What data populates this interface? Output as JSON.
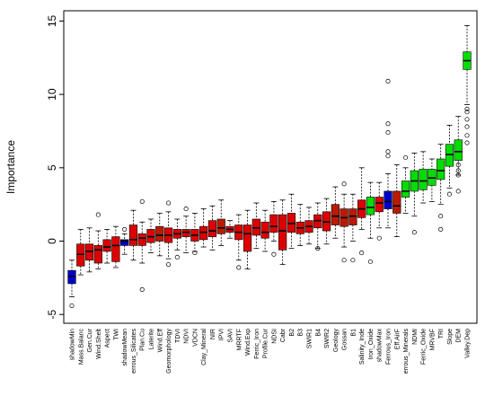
{
  "chart_data": {
    "type": "box",
    "ylabel": "Importance",
    "xlabel": "",
    "ylim": [
      -5.6,
      15.7
    ],
    "yticks": [
      -5,
      0,
      5,
      10,
      15
    ],
    "grid": false,
    "legend": "none",
    "colors": {
      "shadow": "#0000cc",
      "rejected": "#dd0000",
      "tentative": "#bb1a00",
      "confirmed": "#00dd00",
      "median": "#000000",
      "whisker": "#000000"
    },
    "categories": [
      "shadowMin",
      "Mass.Balanc",
      "Gen.Cur",
      "Wind.Shelt",
      "Aspect",
      "TWI",
      "shadowMean",
      "errous_Silicates",
      "Plan.Cu",
      "Laterite",
      "Wind.Eff",
      "Geomorphology",
      "TDVI",
      "NDVI",
      "VDCN",
      "Clay_Mineral",
      "NIR",
      "IPVI",
      "SAVI",
      "MRRTF",
      "Wind.Exp",
      "Ferric_Iron",
      "Profile.Cur",
      "NDSI",
      "Cabr",
      "B2",
      "B3",
      "SWIR1",
      "B4",
      "SWIR2",
      "Geology",
      "Gossan",
      "B1",
      "Salinity_Inde",
      "Iron_Oxide",
      "shadowMax",
      "Ferrous_Iron",
      "Eff.AirF",
      "errous_Minerals",
      "NDMI",
      "Ferric_Oxide",
      "MRVBF",
      "TRI",
      "Slope",
      "DEM",
      "Valley.Dep"
    ],
    "boxes": [
      {
        "status": "shadow",
        "min": -3.8,
        "q1": -2.9,
        "median": -2.4,
        "q3": -2.0,
        "max": -1.3,
        "outliers": [
          -4.4
        ]
      },
      {
        "status": "rejected",
        "min": -2.3,
        "q1": -1.7,
        "median": -0.9,
        "q3": -0.2,
        "max": 0.8,
        "outliers": []
      },
      {
        "status": "rejected",
        "min": -2.1,
        "q1": -1.3,
        "median": -0.7,
        "q3": -0.2,
        "max": 0.9,
        "outliers": []
      },
      {
        "status": "rejected",
        "min": -1.9,
        "q1": -1.5,
        "median": -0.6,
        "q3": -0.3,
        "max": 0.7,
        "outliers": [
          1.8
        ]
      },
      {
        "status": "rejected",
        "min": -1.5,
        "q1": -0.7,
        "median": -0.4,
        "q3": 0.1,
        "max": 0.8,
        "outliers": []
      },
      {
        "status": "rejected",
        "min": -1.8,
        "q1": -1.4,
        "median": -0.3,
        "q3": 0.3,
        "max": 1.0,
        "outliers": []
      },
      {
        "status": "shadow",
        "min": -0.9,
        "q1": -0.3,
        "median": 0.0,
        "q3": 0.1,
        "max": 0.5,
        "outliers": [
          0.8
        ]
      },
      {
        "status": "rejected",
        "min": -1.3,
        "q1": -0.3,
        "median": 0.1,
        "q3": 1.1,
        "max": 2.1,
        "outliers": []
      },
      {
        "status": "rejected",
        "min": -1.5,
        "q1": -0.3,
        "median": 0.2,
        "q3": 0.5,
        "max": 1.3,
        "outliers": [
          2.7,
          -3.3
        ]
      },
      {
        "status": "rejected",
        "min": -0.8,
        "q1": -0.1,
        "median": 0.3,
        "q3": 0.8,
        "max": 1.5,
        "outliers": []
      },
      {
        "status": "tentative",
        "min": -1.0,
        "q1": 0.0,
        "median": 0.4,
        "q3": 1.0,
        "max": 1.9,
        "outliers": []
      },
      {
        "status": "rejected",
        "min": -1.2,
        "q1": -0.1,
        "median": 0.4,
        "q3": 0.9,
        "max": 2.0,
        "outliers": [
          2.6,
          -1.6
        ]
      },
      {
        "status": "rejected",
        "min": -0.6,
        "q1": 0.2,
        "median": 0.5,
        "q3": 0.8,
        "max": 1.5,
        "outliers": [
          -1.1
        ]
      },
      {
        "status": "rejected",
        "min": -0.8,
        "q1": 0.3,
        "median": 0.6,
        "q3": 0.8,
        "max": 1.7,
        "outliers": [
          2.2
        ]
      },
      {
        "status": "rejected",
        "min": -0.7,
        "q1": 0.0,
        "median": 0.4,
        "q3": 0.8,
        "max": 1.9,
        "outliers": [
          -0.8
        ]
      },
      {
        "status": "rejected",
        "min": -0.4,
        "q1": 0.1,
        "median": 0.6,
        "q3": 1.0,
        "max": 2.2,
        "outliers": []
      },
      {
        "status": "rejected",
        "min": -0.6,
        "q1": 0.3,
        "median": 0.7,
        "q3": 1.4,
        "max": 2.4,
        "outliers": []
      },
      {
        "status": "tentative",
        "min": -0.3,
        "q1": 0.5,
        "median": 0.9,
        "q3": 1.5,
        "max": 2.8,
        "outliers": []
      },
      {
        "status": "rejected",
        "min": 0.2,
        "q1": 0.6,
        "median": 0.8,
        "q3": 1.0,
        "max": 1.4,
        "outliers": []
      },
      {
        "status": "rejected",
        "min": -1.3,
        "q1": 0.1,
        "median": 0.6,
        "q3": 1.1,
        "max": 1.8,
        "outliers": [
          -1.8
        ]
      },
      {
        "status": "rejected",
        "min": -1.9,
        "q1": -0.7,
        "median": 0.5,
        "q3": 1.1,
        "max": 2.1,
        "outliers": []
      },
      {
        "status": "rejected",
        "min": -0.5,
        "q1": 0.4,
        "median": 0.9,
        "q3": 1.5,
        "max": 2.6,
        "outliers": []
      },
      {
        "status": "rejected",
        "min": -0.7,
        "q1": 0.2,
        "median": 0.6,
        "q3": 1.3,
        "max": 2.1,
        "outliers": []
      },
      {
        "status": "rejected",
        "min": 0.0,
        "q1": 0.6,
        "median": 1.0,
        "q3": 1.8,
        "max": 2.7,
        "outliers": [
          -0.9
        ]
      },
      {
        "status": "rejected",
        "min": -1.6,
        "q1": -0.6,
        "median": 0.7,
        "q3": 1.8,
        "max": 2.8,
        "outliers": []
      },
      {
        "status": "rejected",
        "min": -0.5,
        "q1": 0.6,
        "median": 1.2,
        "q3": 1.9,
        "max": 3.2,
        "outliers": []
      },
      {
        "status": "rejected",
        "min": -0.3,
        "q1": 0.5,
        "median": 0.9,
        "q3": 1.3,
        "max": 2.5,
        "outliers": []
      },
      {
        "status": "rejected",
        "min": -0.2,
        "q1": 0.6,
        "median": 1.0,
        "q3": 1.4,
        "max": 2.3,
        "outliers": []
      },
      {
        "status": "rejected",
        "min": -0.5,
        "q1": 0.9,
        "median": 1.4,
        "q3": 1.8,
        "max": 2.6,
        "outliers": [
          -0.5
        ]
      },
      {
        "status": "rejected",
        "min": -0.2,
        "q1": 0.7,
        "median": 1.3,
        "q3": 2.0,
        "max": 2.9,
        "outliers": []
      },
      {
        "status": "tentative",
        "min": 0.2,
        "q1": 1.1,
        "median": 1.7,
        "q3": 2.5,
        "max": 3.7,
        "outliers": []
      },
      {
        "status": "tentative",
        "min": -0.4,
        "q1": 1.0,
        "median": 1.6,
        "q3": 2.2,
        "max": 3.2,
        "outliers": [
          3.9,
          -1.3
        ]
      },
      {
        "status": "tentative",
        "min": 0.0,
        "q1": 1.1,
        "median": 1.7,
        "q3": 2.2,
        "max": 3.2,
        "outliers": [
          -1.3
        ]
      },
      {
        "status": "rejected",
        "min": 0.8,
        "q1": 1.6,
        "median": 2.2,
        "q3": 2.8,
        "max": 5.0,
        "outliers": [
          -0.8
        ]
      },
      {
        "status": "confirmed",
        "min": 0.2,
        "q1": 1.8,
        "median": 2.3,
        "q3": 3.0,
        "max": 4.0,
        "outliers": [
          -1.4
        ]
      },
      {
        "status": "rejected",
        "min": 0.9,
        "q1": 2.0,
        "median": 2.6,
        "q3": 3.0,
        "max": 4.0,
        "outliers": [
          0.2
        ]
      },
      {
        "status": "shadow",
        "min": 0.9,
        "q1": 2.2,
        "median": 2.7,
        "q3": 3.4,
        "max": 4.6,
        "outliers": [
          5.8,
          6.1,
          7.4,
          8.0,
          10.9
        ]
      },
      {
        "status": "tentative",
        "min": 0.3,
        "q1": 1.9,
        "median": 2.4,
        "q3": 3.4,
        "max": 5.2,
        "outliers": []
      },
      {
        "status": "confirmed",
        "min": 1.9,
        "q1": 3.0,
        "median": 3.4,
        "q3": 4.1,
        "max": 5.0,
        "outliers": [
          5.7
        ]
      },
      {
        "status": "confirmed",
        "min": 1.7,
        "q1": 3.4,
        "median": 4.1,
        "q3": 4.8,
        "max": 6.0,
        "outliers": [
          0.6
        ]
      },
      {
        "status": "confirmed",
        "min": 2.6,
        "q1": 3.5,
        "median": 4.1,
        "q3": 4.9,
        "max": 6.1,
        "outliers": []
      },
      {
        "status": "confirmed",
        "min": 2.7,
        "q1": 3.8,
        "median": 4.3,
        "q3": 4.9,
        "max": 5.6,
        "outliers": []
      },
      {
        "status": "confirmed",
        "min": 2.5,
        "q1": 4.2,
        "median": 4.8,
        "q3": 5.6,
        "max": 6.6,
        "outliers": [
          0.8,
          1.7
        ]
      },
      {
        "status": "confirmed",
        "min": 3.6,
        "q1": 5.1,
        "median": 5.9,
        "q3": 6.6,
        "max": 7.9,
        "outliers": [
          3.2
        ]
      },
      {
        "status": "confirmed",
        "min": 4.5,
        "q1": 5.5,
        "median": 6.1,
        "q3": 6.9,
        "max": 8.5,
        "outliers": [
          3.4,
          4.5,
          4.8,
          5.2
        ]
      },
      {
        "status": "confirmed",
        "min": 9.3,
        "q1": 11.7,
        "median": 12.3,
        "q3": 12.9,
        "max": 14.7,
        "outliers": [
          6.7,
          7.2,
          7.8,
          8.3,
          8.8,
          9.0
        ]
      }
    ]
  }
}
